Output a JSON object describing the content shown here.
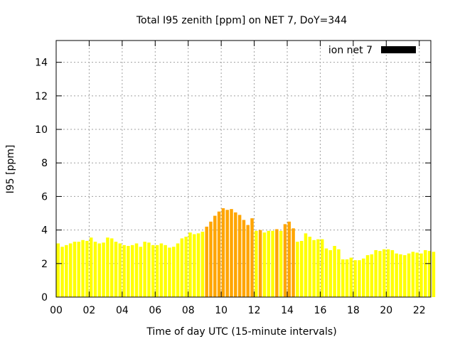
{
  "chart_data": {
    "type": "bar",
    "title": "Total I95 zenith [ppm] on NET 7, DoY=344",
    "xlabel": "Time of day UTC (15-minute intervals)",
    "ylabel": "I95 [ppm]",
    "xlim": [
      0,
      22.7
    ],
    "ylim": [
      0,
      15.3
    ],
    "xticks": [
      0,
      2,
      4,
      6,
      8,
      10,
      12,
      14,
      16,
      18,
      20,
      22
    ],
    "xtick_labels": [
      "00",
      "02",
      "04",
      "06",
      "08",
      "10",
      "12",
      "14",
      "16",
      "18",
      "20",
      "22"
    ],
    "yticks": [
      0,
      2,
      4,
      6,
      8,
      10,
      12,
      14
    ],
    "ytick_labels": [
      "0",
      "2",
      "4",
      "6",
      "8",
      "10",
      "12",
      "14"
    ],
    "grid": true,
    "legend": {
      "label": "ion net 7",
      "position": "top-right",
      "color": "#000000"
    },
    "bar_interval_hours": 0.25,
    "color_low": "#ffff00",
    "color_high": "#ffa500",
    "threshold": 4.0,
    "values": [
      3.2,
      3.0,
      3.1,
      3.2,
      3.3,
      3.3,
      3.4,
      3.35,
      3.55,
      3.3,
      3.2,
      3.25,
      3.55,
      3.5,
      3.3,
      3.2,
      3.1,
      3.05,
      3.1,
      3.2,
      3.0,
      3.3,
      3.25,
      3.1,
      3.1,
      3.2,
      3.1,
      2.95,
      3.0,
      3.2,
      3.5,
      3.6,
      3.85,
      3.75,
      3.8,
      3.9,
      4.2,
      4.5,
      4.85,
      5.1,
      5.3,
      5.2,
      5.25,
      5.05,
      4.9,
      4.6,
      4.3,
      4.7,
      3.95,
      4.0,
      3.85,
      3.95,
      3.95,
      4.05,
      3.95,
      4.35,
      4.5,
      4.1,
      3.3,
      3.35,
      3.8,
      3.6,
      3.4,
      3.45,
      3.45,
      2.9,
      2.8,
      3.05,
      2.85,
      2.25,
      2.25,
      2.35,
      2.2,
      2.2,
      2.3,
      2.5,
      2.55,
      2.8,
      2.75,
      2.85,
      2.85,
      2.8,
      2.6,
      2.55,
      2.5,
      2.6,
      2.7,
      2.65,
      2.6,
      2.8,
      2.75,
      2.7
    ]
  }
}
